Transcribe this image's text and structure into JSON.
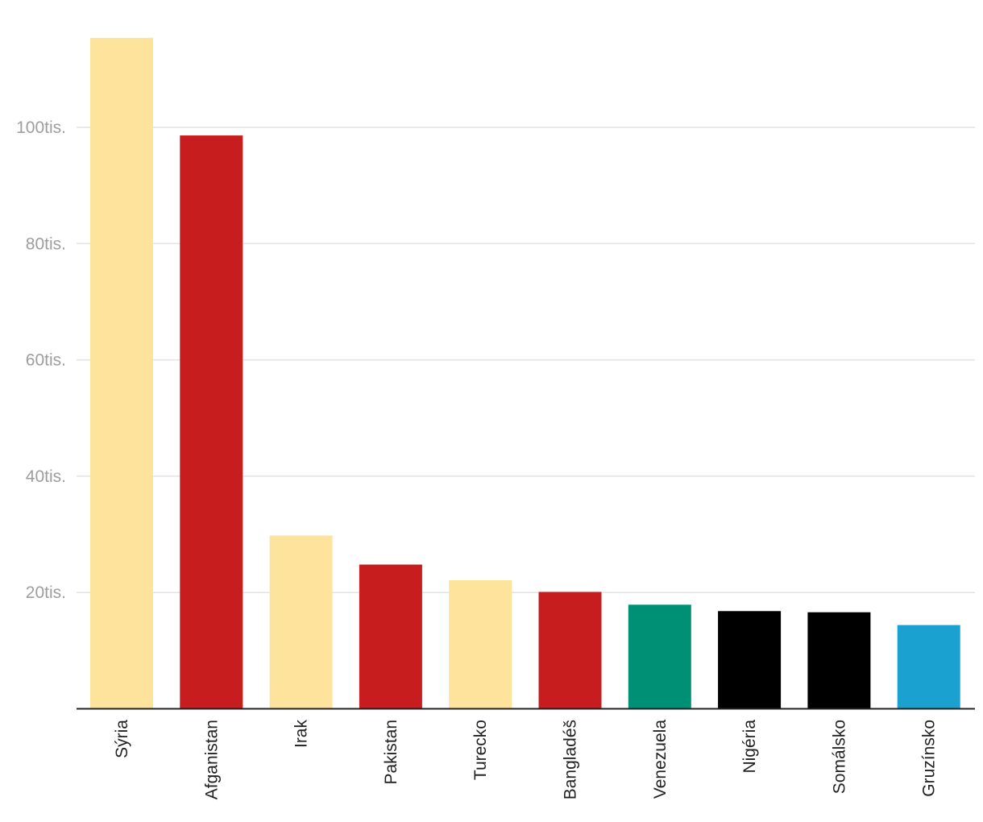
{
  "chart_data": {
    "type": "bar",
    "title": "",
    "xlabel": "",
    "ylabel": "",
    "categories": [
      "Sýria",
      "Afganistan",
      "Irak",
      "Pakistan",
      "Turecko",
      "Bangladéš",
      "Venezuela",
      "Nigéria",
      "Somálsko",
      "Gruzínsko"
    ],
    "values": [
      115400,
      98600,
      29800,
      24800,
      22100,
      20100,
      17900,
      16800,
      16600,
      14400
    ],
    "colors": [
      "#fee39c",
      "#c71d1f",
      "#fee39c",
      "#c71d1f",
      "#fee39c",
      "#c71d1f",
      "#009075",
      "#000000",
      "#000000",
      "#1aa1cf"
    ],
    "ylim": [
      0,
      115400
    ],
    "yticks": [
      20000,
      40000,
      60000,
      80000,
      100000
    ],
    "ytick_labels": [
      "20tis.",
      "40tis.",
      "60tis.",
      "80tis.",
      "100tis."
    ],
    "grid": true,
    "legend": "none"
  }
}
